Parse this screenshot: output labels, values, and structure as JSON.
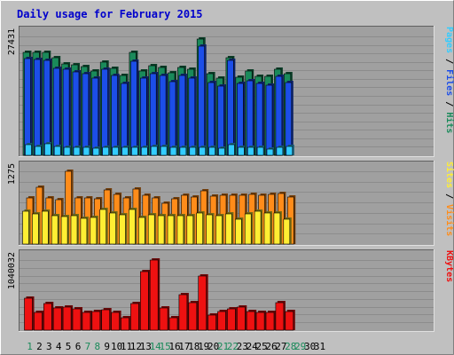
{
  "chart_data": {
    "type": "bar",
    "title": "Daily usage for February 2015",
    "days": [
      "1",
      "2",
      "3",
      "4",
      "5",
      "6",
      "7",
      "8",
      "9",
      "10",
      "11",
      "12",
      "13",
      "14",
      "15",
      "16",
      "17",
      "18",
      "19",
      "20",
      "21",
      "22",
      "23",
      "24",
      "25",
      "26",
      "27",
      "28",
      "29",
      "30",
      "31"
    ],
    "weekend_days": [
      "1",
      "7",
      "8",
      "14",
      "15",
      "21",
      "22",
      "28",
      "29"
    ],
    "panels": [
      {
        "id": "hits",
        "scale_label": "27431",
        "ymax": 27431,
        "series_labels": [
          "Pages",
          "Files",
          "Hits"
        ],
        "series": [
          {
            "name": "Hits",
            "color": "#1a8a5a",
            "values": [
              23700,
              23800,
              23700,
              22600,
              21000,
              20800,
              20500,
              19500,
              21500,
              20000,
              18400,
              23800,
              19500,
              20600,
              20200,
              19000,
              20200,
              19800,
              26900,
              18800,
              17900,
              22600,
              18000,
              19500,
              18200,
              18300,
              19800,
              18900,
              null,
              null,
              null
            ]
          },
          {
            "name": "Files",
            "color": "#1c4ee8",
            "values": [
              22300,
              22100,
              22000,
              20100,
              19800,
              19200,
              18900,
              17900,
              19900,
              18400,
              16600,
              21700,
              17900,
              18900,
              18500,
              17000,
              18400,
              17800,
              25100,
              16700,
              16000,
              21900,
              16500,
              17200,
              16500,
              16200,
              18200,
              16800,
              null,
              null,
              null
            ]
          },
          {
            "name": "Pages",
            "color": "#33ccff",
            "values": [
              2500,
              2100,
              2700,
              2000,
              1900,
              1900,
              1800,
              1600,
              1800,
              1800,
              1800,
              1900,
              1800,
              2100,
              2000,
              1800,
              1800,
              1800,
              1800,
              1800,
              1700,
              2500,
              1800,
              1900,
              1800,
              1500,
              1900,
              2100,
              null,
              null,
              null
            ]
          }
        ]
      },
      {
        "id": "visits",
        "scale_label": "1275",
        "ymax": 1275,
        "series_labels": [
          "Sites",
          "Visits"
        ],
        "series": [
          {
            "name": "Visits",
            "color": "#ff8c1a",
            "values": [
              810,
              1000,
              810,
              780,
              1275,
              810,
              810,
              800,
              950,
              870,
              810,
              960,
              860,
              810,
              720,
              800,
              860,
              830,
              940,
              840,
              860,
              850,
              860,
              870,
              860,
              870,
              880,
              820,
              null,
              null,
              null
            ]
          },
          {
            "name": "Sites",
            "color": "#ffee33",
            "values": [
              570,
              530,
              580,
              500,
              480,
              490,
              450,
              470,
              610,
              550,
              510,
              600,
              460,
              510,
              500,
              500,
              490,
              490,
              540,
              510,
              500,
              530,
              430,
              530,
              570,
              550,
              540,
              430,
              null,
              null,
              null
            ]
          }
        ]
      },
      {
        "id": "kbytes",
        "scale_label": "1040032",
        "ymax": 1040032,
        "series_labels": [
          "KBytes"
        ],
        "series": [
          {
            "name": "KBytes",
            "color": "#ee1111",
            "values": [
              480000,
              260000,
              390000,
              330000,
              340000,
              320000,
              260000,
              280000,
              300000,
              260000,
              180000,
              400000,
              870000,
              1040032,
              330000,
              180000,
              530000,
              410000,
              800000,
              220000,
              270000,
              310000,
              340000,
              280000,
              260000,
              260000,
              410000,
              270000,
              null,
              null,
              null
            ]
          }
        ]
      }
    ]
  }
}
